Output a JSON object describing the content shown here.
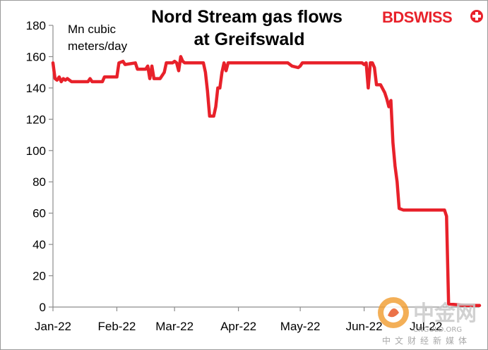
{
  "chart_data": {
    "type": "line",
    "title": "Nord Stream gas flows\nat Greifswald",
    "ylabel": "Mn cubic\nmeters/day",
    "xlabel": "",
    "ylim": [
      0,
      180
    ],
    "xlim": [
      "2022-01-01",
      "2022-07-27"
    ],
    "yticks": [
      "0",
      "20",
      "40",
      "60",
      "80",
      "100",
      "120",
      "140",
      "160",
      "180"
    ],
    "xticks": [
      {
        "date": "2022-01-01",
        "label": "Jan-22"
      },
      {
        "date": "2022-02-01",
        "label": "Feb-22"
      },
      {
        "date": "2022-03-01",
        "label": "Mar-22"
      },
      {
        "date": "2022-04-01",
        "label": "Apr-22"
      },
      {
        "date": "2022-05-01",
        "label": "May-22"
      },
      {
        "date": "2022-06-01",
        "label": "Jun-22"
      },
      {
        "date": "2022-07-01",
        "label": "Jul-22"
      }
    ],
    "grid": false,
    "line_color": "#e8212a",
    "series": [
      {
        "name": "",
        "points": [
          [
            "2022-01-01",
            156
          ],
          [
            "2022-01-02",
            146
          ],
          [
            "2022-01-03",
            145
          ],
          [
            "2022-01-04",
            147
          ],
          [
            "2022-01-05",
            144
          ],
          [
            "2022-01-06",
            146
          ],
          [
            "2022-01-07",
            145
          ],
          [
            "2022-01-08",
            146
          ],
          [
            "2022-01-10",
            144
          ],
          [
            "2022-01-15",
            144
          ],
          [
            "2022-01-18",
            144
          ],
          [
            "2022-01-19",
            146
          ],
          [
            "2022-01-20",
            144
          ],
          [
            "2022-01-25",
            144
          ],
          [
            "2022-01-26",
            147
          ],
          [
            "2022-01-31",
            147
          ],
          [
            "2022-02-01",
            147
          ],
          [
            "2022-02-02",
            156
          ],
          [
            "2022-02-04",
            157
          ],
          [
            "2022-02-05",
            155
          ],
          [
            "2022-02-10",
            156
          ],
          [
            "2022-02-11",
            152
          ],
          [
            "2022-02-15",
            152
          ],
          [
            "2022-02-16",
            154
          ],
          [
            "2022-02-17",
            146
          ],
          [
            "2022-02-18",
            154
          ],
          [
            "2022-02-19",
            146
          ],
          [
            "2022-02-22",
            146
          ],
          [
            "2022-02-24",
            150
          ],
          [
            "2022-02-25",
            156
          ],
          [
            "2022-02-28",
            156
          ],
          [
            "2022-03-01",
            157
          ],
          [
            "2022-03-02",
            156
          ],
          [
            "2022-03-03",
            151
          ],
          [
            "2022-03-04",
            160
          ],
          [
            "2022-03-05",
            157
          ],
          [
            "2022-03-06",
            156
          ],
          [
            "2022-03-15",
            156
          ],
          [
            "2022-03-16",
            150
          ],
          [
            "2022-03-17",
            138
          ],
          [
            "2022-03-18",
            122
          ],
          [
            "2022-03-20",
            122
          ],
          [
            "2022-03-21",
            128
          ],
          [
            "2022-03-22",
            140
          ],
          [
            "2022-03-23",
            140
          ],
          [
            "2022-03-24",
            150
          ],
          [
            "2022-03-25",
            156
          ],
          [
            "2022-03-26",
            151
          ],
          [
            "2022-03-27",
            156
          ],
          [
            "2022-04-05",
            156
          ],
          [
            "2022-04-15",
            156
          ],
          [
            "2022-04-25",
            156
          ],
          [
            "2022-04-27",
            154
          ],
          [
            "2022-04-30",
            153
          ],
          [
            "2022-05-01",
            154
          ],
          [
            "2022-05-02",
            156
          ],
          [
            "2022-05-10",
            156
          ],
          [
            "2022-05-20",
            156
          ],
          [
            "2022-05-31",
            156
          ],
          [
            "2022-06-01",
            155
          ],
          [
            "2022-06-02",
            156
          ],
          [
            "2022-06-03",
            140
          ],
          [
            "2022-06-04",
            156
          ],
          [
            "2022-06-05",
            156
          ],
          [
            "2022-06-06",
            153
          ],
          [
            "2022-06-07",
            142
          ],
          [
            "2022-06-09",
            142
          ],
          [
            "2022-06-11",
            137
          ],
          [
            "2022-06-12",
            133
          ],
          [
            "2022-06-13",
            128
          ],
          [
            "2022-06-14",
            132
          ],
          [
            "2022-06-15",
            105
          ],
          [
            "2022-06-16",
            90
          ],
          [
            "2022-06-17",
            80
          ],
          [
            "2022-06-18",
            63
          ],
          [
            "2022-06-20",
            62
          ],
          [
            "2022-06-30",
            62
          ],
          [
            "2022-07-10",
            62
          ],
          [
            "2022-07-11",
            58
          ],
          [
            "2022-07-12",
            2
          ],
          [
            "2022-07-20",
            1
          ],
          [
            "2022-07-27",
            1
          ]
        ]
      }
    ]
  },
  "brand": {
    "prefix": "BD",
    "name": "SWISS",
    "prefix_color": "#e8212a",
    "name_color": "#e8212a"
  },
  "watermark": {
    "big": "中金网",
    "small": "CNGOLD.ORG",
    "tagline": "中文财经新媒体"
  }
}
